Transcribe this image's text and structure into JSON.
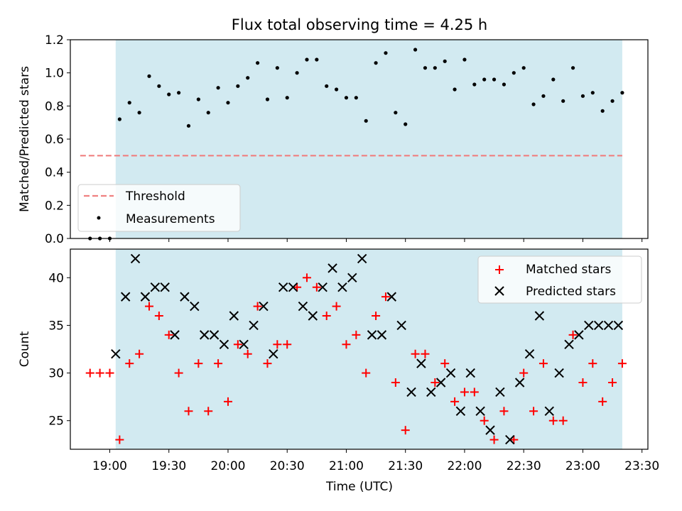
{
  "chart_data": [
    {
      "type": "scatter",
      "title": "Flux total observing time = 4.25 h",
      "xlabel": "",
      "ylabel": "Matched/Predicted stars",
      "ylim": [
        0,
        1.2
      ],
      "yticks": [
        "0.0",
        "0.2",
        "0.4",
        "0.6",
        "0.8",
        "1.0",
        "1.2"
      ],
      "shaded_interval": [
        "19:03",
        "23:20"
      ],
      "shade_color": "#add8e6",
      "threshold": {
        "name": "Threshold",
        "value": 0.5,
        "x_range": [
          "18:45",
          "23:20"
        ],
        "color": "#f08080"
      },
      "legend": {
        "position": "lower-left",
        "entries": [
          "Threshold",
          "Measurements"
        ]
      },
      "series": [
        {
          "name": "Measurements",
          "color": "#000000",
          "x": [
            "18:50",
            "18:55",
            "19:00",
            "19:05",
            "19:10",
            "19:15",
            "19:20",
            "19:25",
            "19:30",
            "19:35",
            "19:40",
            "19:45",
            "19:50",
            "19:55",
            "20:00",
            "20:05",
            "20:10",
            "20:15",
            "20:20",
            "20:25",
            "20:30",
            "20:35",
            "20:40",
            "20:45",
            "20:50",
            "20:55",
            "21:00",
            "21:05",
            "21:10",
            "21:15",
            "21:20",
            "21:25",
            "21:30",
            "21:35",
            "21:40",
            "21:45",
            "21:50",
            "21:55",
            "22:00",
            "22:05",
            "22:10",
            "22:15",
            "22:20",
            "22:25",
            "22:30",
            "22:35",
            "22:40",
            "22:45",
            "22:50",
            "22:55",
            "23:00",
            "23:05",
            "23:10",
            "23:15",
            "23:20"
          ],
          "y": [
            0.0,
            0.0,
            0.0,
            0.72,
            0.82,
            0.76,
            0.98,
            0.92,
            0.87,
            0.88,
            0.68,
            0.84,
            0.76,
            0.91,
            0.82,
            0.92,
            0.97,
            1.06,
            0.84,
            1.03,
            0.85,
            1.0,
            1.08,
            1.08,
            0.92,
            0.9,
            0.85,
            0.85,
            0.71,
            1.06,
            1.12,
            0.76,
            0.69,
            1.14,
            1.03,
            1.03,
            1.07,
            0.9,
            1.08,
            0.93,
            0.96,
            0.96,
            0.93,
            1.0,
            1.03,
            0.81,
            0.86,
            0.96,
            0.83,
            1.03,
            0.86,
            0.88,
            0.77,
            0.83,
            0.88
          ]
        }
      ]
    },
    {
      "type": "scatter",
      "title": "",
      "xlabel": "Time (UTC)",
      "ylabel": "Count",
      "ylim": [
        22,
        43
      ],
      "yticks": [
        "25",
        "30",
        "35",
        "40"
      ],
      "xlim": [
        "18:40",
        "23:33"
      ],
      "xticks": [
        "19:00",
        "19:30",
        "20:00",
        "20:30",
        "21:00",
        "21:30",
        "22:00",
        "22:30",
        "23:00",
        "23:30"
      ],
      "shaded_interval": [
        "19:03",
        "23:20"
      ],
      "shade_color": "#add8e6",
      "legend": {
        "position": "top-right",
        "entries": [
          "Matched stars",
          "Predicted stars"
        ]
      },
      "series": [
        {
          "name": "Matched stars",
          "marker": "+",
          "color": "#ff0000",
          "x": [
            "18:50",
            "18:55",
            "19:00",
            "19:05",
            "19:10",
            "19:15",
            "19:20",
            "19:25",
            "19:30",
            "19:35",
            "19:40",
            "19:45",
            "19:50",
            "19:55",
            "20:00",
            "20:05",
            "20:10",
            "20:15",
            "20:20",
            "20:25",
            "20:30",
            "20:35",
            "20:40",
            "20:45",
            "20:50",
            "20:55",
            "21:00",
            "21:05",
            "21:10",
            "21:15",
            "21:20",
            "21:25",
            "21:30",
            "21:35",
            "21:40",
            "21:45",
            "21:50",
            "21:55",
            "22:00",
            "22:05",
            "22:10",
            "22:15",
            "22:20",
            "22:25",
            "22:30",
            "22:35",
            "22:40",
            "22:45",
            "22:50",
            "22:55",
            "23:00",
            "23:05",
            "23:10",
            "23:15",
            "23:20"
          ],
          "y": [
            30,
            30,
            30,
            23,
            31,
            32,
            37,
            36,
            34,
            30,
            26,
            31,
            26,
            31,
            27,
            33,
            32,
            37,
            31,
            33,
            33,
            39,
            40,
            39,
            36,
            37,
            33,
            34,
            30,
            36,
            38,
            29,
            24,
            32,
            32,
            29,
            31,
            27,
            28,
            28,
            25,
            23,
            26,
            23,
            30,
            26,
            31,
            25,
            25,
            34,
            29,
            31,
            27,
            29,
            31
          ]
        },
        {
          "name": "Predicted stars",
          "marker": "x",
          "color": "#000000",
          "x": [
            "19:03",
            "19:08",
            "19:13",
            "19:18",
            "19:23",
            "19:28",
            "19:33",
            "19:38",
            "19:43",
            "19:48",
            "19:53",
            "19:58",
            "20:03",
            "20:08",
            "20:13",
            "20:18",
            "20:23",
            "20:28",
            "20:33",
            "20:38",
            "20:43",
            "20:48",
            "20:53",
            "20:58",
            "21:03",
            "21:08",
            "21:13",
            "21:18",
            "21:23",
            "21:28",
            "21:33",
            "21:38",
            "21:43",
            "21:48",
            "21:53",
            "21:58",
            "22:03",
            "22:08",
            "22:13",
            "22:18",
            "22:23",
            "22:28",
            "22:33",
            "22:38",
            "22:43",
            "22:48",
            "22:53",
            "22:58",
            "23:03",
            "23:08",
            "23:13",
            "23:18"
          ],
          "y": [
            32,
            38,
            42,
            38,
            39,
            39,
            34,
            38,
            37,
            34,
            34,
            33,
            36,
            33,
            35,
            37,
            32,
            39,
            39,
            37,
            36,
            39,
            41,
            39,
            40,
            42,
            34,
            34,
            38,
            35,
            28,
            31,
            28,
            29,
            30,
            26,
            30,
            26,
            24,
            28,
            23,
            29,
            32,
            36,
            26,
            30,
            33,
            34,
            35,
            35,
            35,
            35
          ]
        }
      ]
    }
  ]
}
